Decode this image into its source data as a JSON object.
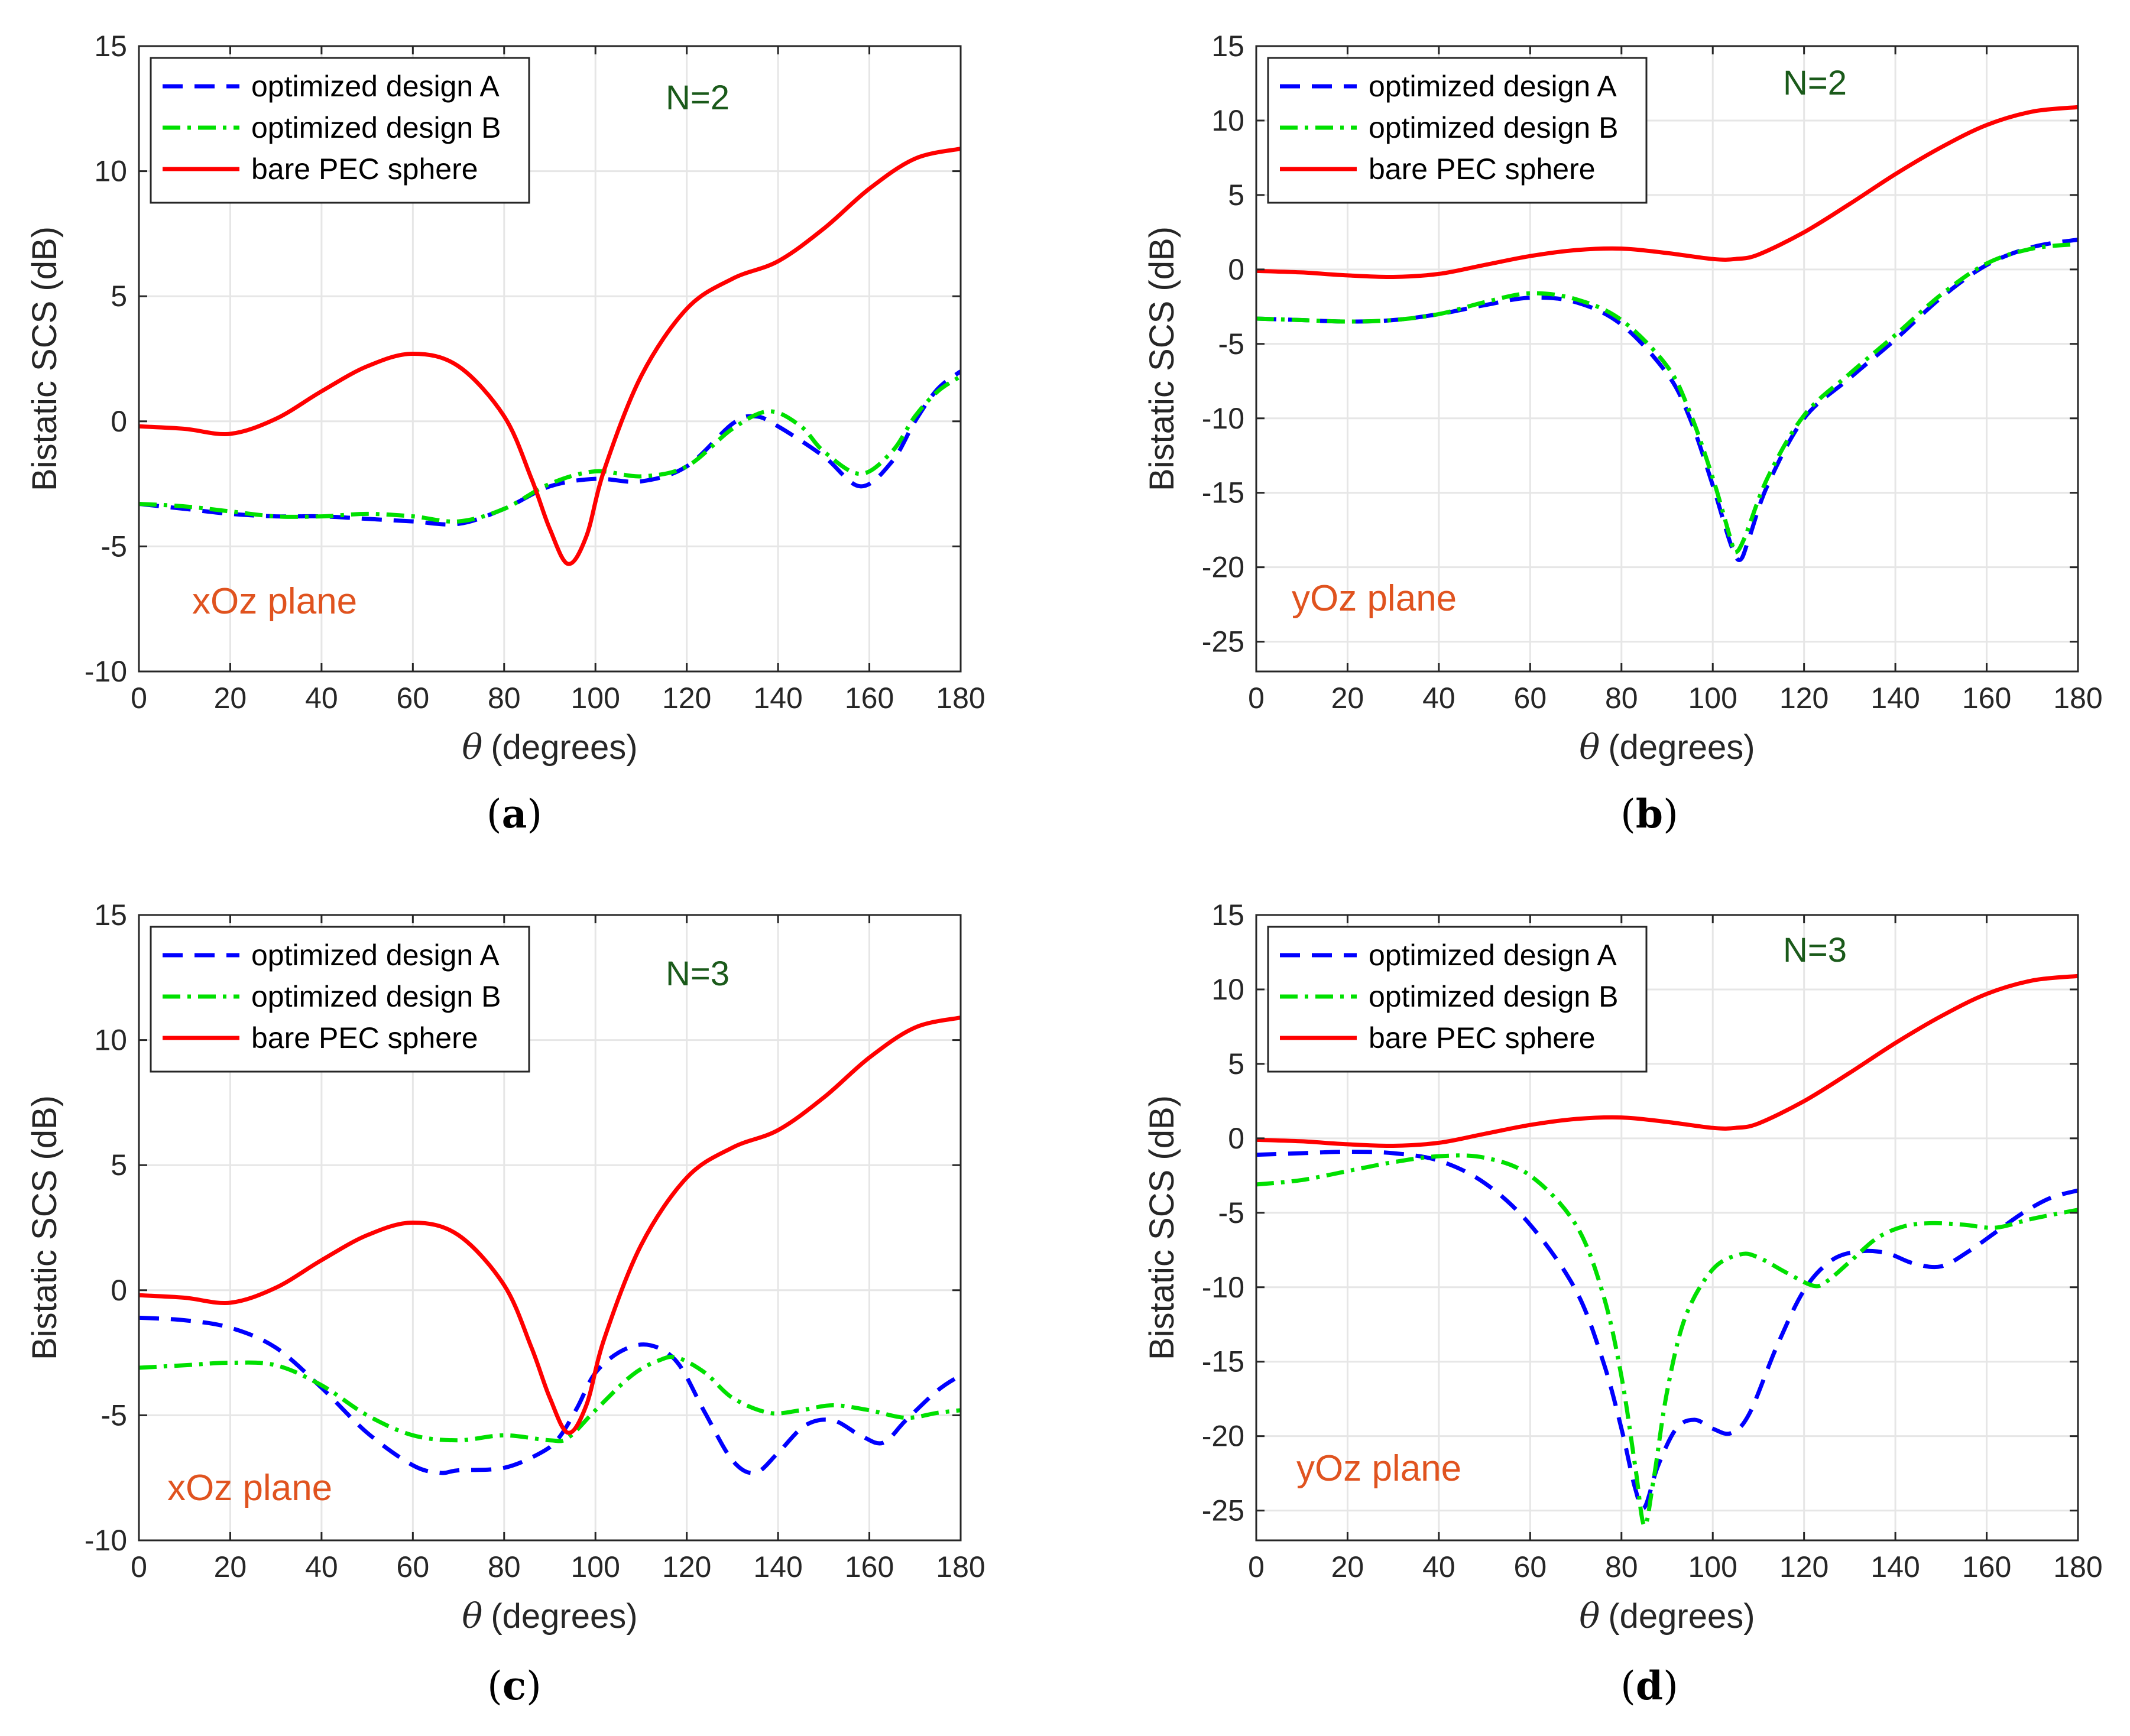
{
  "figure_title": "Bistatic SCS panels",
  "colors": {
    "design_a": "#0000ff",
    "design_b": "#00e000",
    "bare_pec": "#ff0000",
    "n_label": "#1a5a1a",
    "plane_label": "#e0531f",
    "grid": "#e6e6e6",
    "axes": "#262626"
  },
  "chart_data": [
    {
      "type": "line",
      "panel": "a",
      "caption": "(a)",
      "caption_letter": "a",
      "xlabel_theta": "θ",
      "xlabel": "(degrees)",
      "ylabel": "Bistatic SCS (dB)",
      "xlim": [
        0,
        180
      ],
      "ylim": [
        -10,
        15
      ],
      "xticks": [
        0,
        20,
        40,
        60,
        80,
        100,
        120,
        140,
        160,
        180
      ],
      "yticks": [
        -10,
        -5,
        0,
        5,
        10,
        15
      ],
      "n_label": "N=2",
      "plane_label": "xOz plane",
      "legend": [
        "optimized design A",
        "optimized design B",
        "bare PEC sphere"
      ],
      "series": [
        {
          "name": "optimized design A",
          "style": "dashed",
          "color": "#0000ff",
          "x": [
            0,
            10,
            20,
            30,
            40,
            50,
            60,
            70,
            80,
            90,
            100,
            110,
            120,
            130,
            135,
            140,
            150,
            158,
            165,
            170,
            175,
            180
          ],
          "y": [
            -3.3,
            -3.5,
            -3.7,
            -3.8,
            -3.8,
            -3.9,
            -4.0,
            -4.1,
            -3.5,
            -2.6,
            -2.3,
            -2.4,
            -1.8,
            -0.1,
            0.2,
            -0.2,
            -1.4,
            -2.6,
            -1.6,
            0.0,
            1.3,
            2.0
          ]
        },
        {
          "name": "optimized design B",
          "style": "dashdot",
          "color": "#00e000",
          "x": [
            0,
            10,
            20,
            30,
            40,
            50,
            60,
            70,
            80,
            90,
            100,
            110,
            120,
            130,
            138,
            145,
            150,
            158,
            165,
            170,
            175,
            180
          ],
          "y": [
            -3.3,
            -3.4,
            -3.6,
            -3.8,
            -3.8,
            -3.7,
            -3.8,
            -4.0,
            -3.5,
            -2.5,
            -2.0,
            -2.2,
            -1.8,
            -0.3,
            0.4,
            -0.2,
            -1.2,
            -2.1,
            -1.2,
            0.2,
            1.2,
            1.8
          ]
        },
        {
          "name": "bare PEC sphere",
          "style": "solid",
          "color": "#ff0000",
          "x": [
            0,
            10,
            20,
            30,
            40,
            50,
            60,
            70,
            80,
            86,
            90,
            94,
            98,
            102,
            110,
            120,
            130,
            140,
            150,
            160,
            170,
            180
          ],
          "y": [
            -0.2,
            -0.3,
            -0.5,
            0.1,
            1.2,
            2.2,
            2.7,
            2.2,
            0.2,
            -2.3,
            -4.3,
            -5.7,
            -4.6,
            -1.9,
            1.8,
            4.5,
            5.7,
            6.4,
            7.7,
            9.3,
            10.5,
            10.9
          ]
        }
      ]
    },
    {
      "type": "line",
      "panel": "b",
      "caption": "(b)",
      "caption_letter": "b",
      "xlabel_theta": "θ",
      "xlabel": "(degrees)",
      "ylabel": "Bistatic SCS (dB)",
      "xlim": [
        0,
        180
      ],
      "ylim": [
        -27,
        15
      ],
      "xticks": [
        0,
        20,
        40,
        60,
        80,
        100,
        120,
        140,
        160,
        180
      ],
      "yticks": [
        -25,
        -20,
        -15,
        -10,
        -5,
        0,
        5,
        10,
        15
      ],
      "n_label": "N=2",
      "plane_label": "yOz plane",
      "legend": [
        "optimized design A",
        "optimized design B",
        "bare PEC sphere"
      ],
      "series": [
        {
          "name": "optimized design A",
          "style": "dashed",
          "color": "#0000ff",
          "x": [
            0,
            10,
            20,
            30,
            40,
            50,
            60,
            70,
            80,
            90,
            95,
            100,
            104,
            106,
            108,
            112,
            120,
            130,
            140,
            150,
            160,
            170,
            180
          ],
          "y": [
            -3.3,
            -3.4,
            -3.5,
            -3.4,
            -3.0,
            -2.4,
            -1.9,
            -2.2,
            -3.7,
            -7.0,
            -10.0,
            -14.5,
            -18.5,
            -19.5,
            -18.0,
            -14.5,
            -10.0,
            -7.3,
            -4.7,
            -1.9,
            0.3,
            1.5,
            2.0
          ]
        },
        {
          "name": "optimized design B",
          "style": "dashdot",
          "color": "#00e000",
          "x": [
            0,
            10,
            20,
            30,
            40,
            50,
            60,
            70,
            80,
            90,
            95,
            100,
            104,
            105,
            107,
            112,
            120,
            130,
            140,
            150,
            160,
            170,
            180
          ],
          "y": [
            -3.3,
            -3.4,
            -3.5,
            -3.4,
            -3.0,
            -2.2,
            -1.6,
            -2.0,
            -3.4,
            -6.5,
            -9.6,
            -14.0,
            -18.2,
            -19.0,
            -18.0,
            -14.0,
            -9.8,
            -7.0,
            -4.4,
            -1.7,
            0.4,
            1.4,
            1.7
          ]
        },
        {
          "name": "bare PEC sphere",
          "style": "solid",
          "color": "#ff0000",
          "x": [
            0,
            10,
            20,
            30,
            40,
            50,
            60,
            70,
            80,
            90,
            100,
            105,
            110,
            120,
            130,
            140,
            150,
            160,
            170,
            180
          ],
          "y": [
            -0.1,
            -0.2,
            -0.4,
            -0.5,
            -0.3,
            0.3,
            0.9,
            1.3,
            1.4,
            1.1,
            0.7,
            0.7,
            1.0,
            2.5,
            4.4,
            6.4,
            8.2,
            9.7,
            10.6,
            10.9
          ]
        }
      ]
    },
    {
      "type": "line",
      "panel": "c",
      "caption": "(c)",
      "caption_letter": "c",
      "xlabel_theta": "θ",
      "xlabel": "(degrees)",
      "ylabel": "Bistatic SCS (dB)",
      "xlim": [
        0,
        180
      ],
      "ylim": [
        -10,
        15
      ],
      "xticks": [
        0,
        20,
        40,
        60,
        80,
        100,
        120,
        140,
        160,
        180
      ],
      "yticks": [
        -10,
        -5,
        0,
        5,
        10,
        15
      ],
      "n_label": "N=3",
      "plane_label": "xOz plane",
      "legend": [
        "optimized design A",
        "optimized design B",
        "bare PEC sphere"
      ],
      "series": [
        {
          "name": "optimized design A",
          "style": "dashed",
          "color": "#0000ff",
          "x": [
            0,
            10,
            20,
            30,
            40,
            50,
            60,
            66,
            70,
            80,
            88,
            92,
            96,
            100,
            106,
            112,
            118,
            124,
            130,
            135,
            140,
            146,
            152,
            158,
            163,
            168,
            175,
            180
          ],
          "y": [
            -1.1,
            -1.2,
            -1.5,
            -2.3,
            -3.9,
            -5.7,
            -7.0,
            -7.3,
            -7.2,
            -7.1,
            -6.5,
            -5.9,
            -4.7,
            -3.3,
            -2.4,
            -2.2,
            -2.9,
            -4.9,
            -6.8,
            -7.3,
            -6.5,
            -5.4,
            -5.2,
            -5.8,
            -6.1,
            -5.2,
            -4.0,
            -3.4
          ]
        },
        {
          "name": "optimized design B",
          "style": "dashdot",
          "color": "#00e000",
          "x": [
            0,
            10,
            20,
            30,
            40,
            50,
            60,
            70,
            80,
            90,
            94,
            100,
            108,
            114,
            118,
            124,
            130,
            138,
            145,
            152,
            160,
            168,
            175,
            180
          ],
          "y": [
            -3.1,
            -3.0,
            -2.9,
            -3.0,
            -3.8,
            -5.0,
            -5.8,
            -6.0,
            -5.8,
            -6.0,
            -5.9,
            -4.8,
            -3.4,
            -2.8,
            -2.7,
            -3.3,
            -4.3,
            -4.9,
            -4.8,
            -4.6,
            -4.8,
            -5.1,
            -4.9,
            -4.8
          ]
        },
        {
          "name": "bare PEC sphere",
          "style": "solid",
          "color": "#ff0000",
          "x": [
            0,
            10,
            20,
            30,
            40,
            50,
            60,
            70,
            80,
            86,
            90,
            94,
            98,
            102,
            110,
            120,
            130,
            140,
            150,
            160,
            170,
            180
          ],
          "y": [
            -0.2,
            -0.3,
            -0.5,
            0.1,
            1.2,
            2.2,
            2.7,
            2.2,
            0.2,
            -2.3,
            -4.3,
            -5.7,
            -4.6,
            -1.9,
            1.8,
            4.5,
            5.7,
            6.4,
            7.7,
            9.3,
            10.5,
            10.9
          ]
        }
      ]
    },
    {
      "type": "line",
      "panel": "d",
      "caption": "(d)",
      "caption_letter": "d",
      "xlabel_theta": "θ",
      "xlabel": "(degrees)",
      "ylabel": "Bistatic SCS (dB)",
      "xlim": [
        0,
        180
      ],
      "ylim": [
        -27,
        15
      ],
      "xticks": [
        0,
        20,
        40,
        60,
        80,
        100,
        120,
        140,
        160,
        180
      ],
      "yticks": [
        -25,
        -20,
        -15,
        -10,
        -5,
        0,
        5,
        10,
        15
      ],
      "n_label": "N=3",
      "plane_label": "yOz plane",
      "legend": [
        "optimized design A",
        "optimized design B",
        "bare PEC sphere"
      ],
      "series": [
        {
          "name": "optimized design A",
          "style": "dashed",
          "color": "#0000ff",
          "x": [
            0,
            10,
            20,
            30,
            40,
            50,
            60,
            70,
            76,
            80,
            83,
            85,
            88,
            92,
            96,
            100,
            104,
            108,
            114,
            120,
            126,
            132,
            138,
            144,
            150,
            156,
            162,
            168,
            174,
            180
          ],
          "y": [
            -1.1,
            -1.0,
            -0.9,
            -1.0,
            -1.5,
            -3.0,
            -5.8,
            -10.2,
            -15.0,
            -19.5,
            -23.5,
            -24.8,
            -22.0,
            -19.5,
            -18.9,
            -19.5,
            -19.8,
            -18.5,
            -14.0,
            -10.2,
            -8.2,
            -7.6,
            -7.7,
            -8.4,
            -8.6,
            -7.6,
            -6.3,
            -5.0,
            -4.0,
            -3.5
          ]
        },
        {
          "name": "optimized design B",
          "style": "dashdot",
          "color": "#00e000",
          "x": [
            0,
            10,
            20,
            30,
            40,
            50,
            60,
            70,
            76,
            80,
            83,
            85,
            87,
            90,
            94,
            100,
            106,
            110,
            116,
            122,
            125,
            130,
            136,
            142,
            148,
            155,
            162,
            170,
            180
          ],
          "y": [
            -3.1,
            -2.8,
            -2.2,
            -1.6,
            -1.2,
            -1.3,
            -2.5,
            -5.8,
            -10.5,
            -16.0,
            -22.0,
            -26.0,
            -23.0,
            -17.0,
            -12.0,
            -8.8,
            -7.8,
            -8.0,
            -9.0,
            -9.9,
            -9.6,
            -8.3,
            -6.7,
            -5.9,
            -5.7,
            -5.8,
            -6.0,
            -5.4,
            -4.8
          ]
        },
        {
          "name": "bare PEC sphere",
          "style": "solid",
          "color": "#ff0000",
          "x": [
            0,
            10,
            20,
            30,
            40,
            50,
            60,
            70,
            80,
            90,
            100,
            105,
            110,
            120,
            130,
            140,
            150,
            160,
            170,
            180
          ],
          "y": [
            -0.1,
            -0.2,
            -0.4,
            -0.5,
            -0.3,
            0.3,
            0.9,
            1.3,
            1.4,
            1.1,
            0.7,
            0.7,
            1.0,
            2.5,
            4.4,
            6.4,
            8.2,
            9.7,
            10.6,
            10.9
          ]
        }
      ]
    }
  ]
}
